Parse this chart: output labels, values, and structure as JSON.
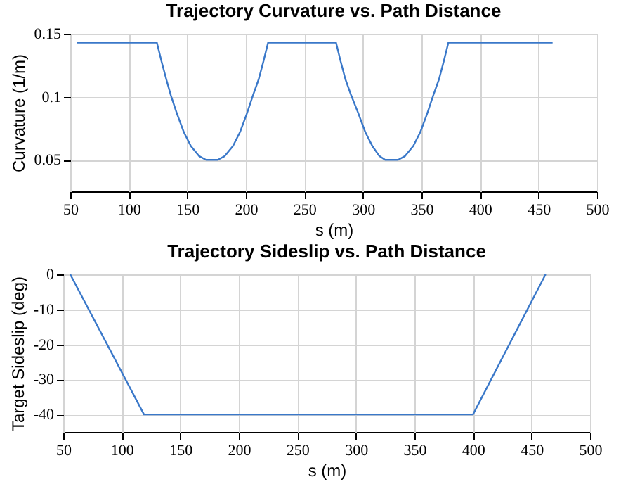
{
  "chart_data": [
    {
      "type": "line",
      "title": "Trajectory Curvature vs. Path Distance",
      "xlabel": "s (m)",
      "ylabel": "Curvature (1/m)",
      "xlim": [
        50,
        500
      ],
      "xticks": [
        50,
        100,
        150,
        200,
        250,
        300,
        350,
        400,
        450,
        500
      ],
      "ylim": [
        0.025,
        0.15
      ],
      "yticks": [
        0.05,
        0.1,
        0.15
      ],
      "grid": true,
      "series": [
        {
          "color": "#3a78c9",
          "x": [
            56,
            124,
            128,
            132,
            136,
            141,
            147,
            153,
            160,
            166,
            176,
            182,
            189,
            195,
            201,
            206,
            211,
            215,
            219,
            277,
            281,
            285,
            290,
            296,
            302,
            308,
            314,
            319,
            330,
            336,
            343,
            349,
            355,
            360,
            365,
            369,
            373,
            462
          ],
          "values": [
            0.143,
            0.143,
            0.128,
            0.114,
            0.101,
            0.087,
            0.072,
            0.061,
            0.053,
            0.05,
            0.05,
            0.053,
            0.061,
            0.072,
            0.087,
            0.101,
            0.114,
            0.128,
            0.143,
            0.143,
            0.128,
            0.114,
            0.101,
            0.087,
            0.072,
            0.061,
            0.053,
            0.05,
            0.05,
            0.053,
            0.061,
            0.072,
            0.087,
            0.101,
            0.114,
            0.128,
            0.143,
            0.143
          ]
        }
      ]
    },
    {
      "type": "line",
      "title": "Trajectory Sideslip vs. Path Distance",
      "xlabel": "s (m)",
      "ylabel": "Target Sideslip (deg)",
      "xlim": [
        50,
        500
      ],
      "xticks": [
        50,
        100,
        150,
        200,
        250,
        300,
        350,
        400,
        450,
        500
      ],
      "ylim": [
        -45,
        0
      ],
      "yticks": [
        -40,
        -30,
        -20,
        -10,
        0
      ],
      "grid": true,
      "series": [
        {
          "color": "#3a78c9",
          "x": [
            56,
            119,
            400,
            462
          ],
          "values": [
            0,
            -40,
            -40,
            0
          ]
        }
      ]
    }
  ]
}
